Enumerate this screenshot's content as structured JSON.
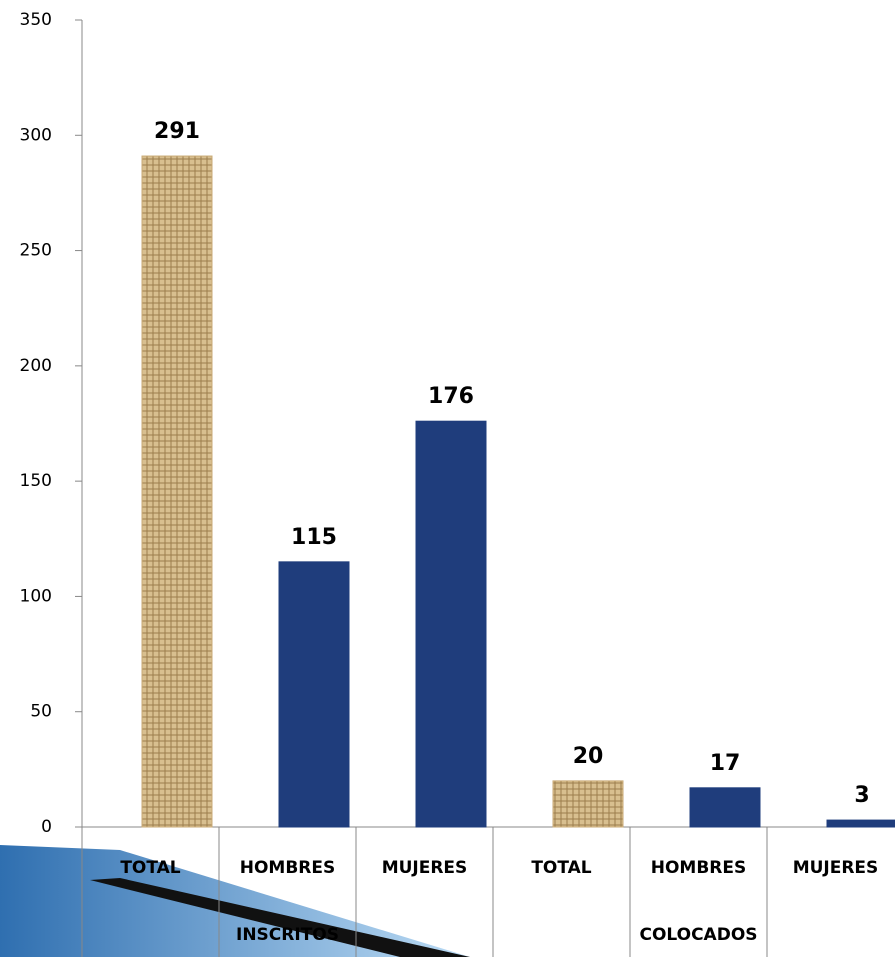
{
  "chart_data": {
    "type": "bar",
    "categories": [
      "TOTAL",
      "HOMBRES",
      "MUJERES",
      "TOTAL",
      "HOMBRES",
      "MUJERES"
    ],
    "groups": [
      "INSCRITOS",
      "COLOCADOS"
    ],
    "values": [
      291,
      115,
      176,
      20,
      17,
      3
    ],
    "colors": [
      "#c9aa76",
      "#1f3d7c",
      "#1f3d7c",
      "#c9aa76",
      "#1f3d7c",
      "#1f3d7c"
    ],
    "ylim": [
      0,
      350
    ],
    "yticks": [
      0,
      50,
      100,
      150,
      200,
      250,
      300,
      350
    ]
  }
}
